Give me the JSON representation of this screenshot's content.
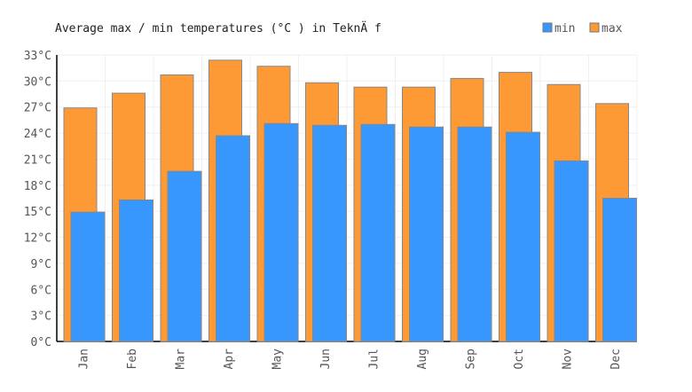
{
  "chart_data": {
    "type": "bar",
    "title": "Average max / min temperatures (°C ) in TeknÄ f",
    "xlabel": "",
    "ylabel": "",
    "ylim": [
      0,
      33
    ],
    "yticks": [
      "0°C",
      "3°C",
      "6°C",
      "9°C",
      "12°C",
      "15°C",
      "18°C",
      "21°C",
      "24°C",
      "27°C",
      "30°C",
      "33°C"
    ],
    "grid": true,
    "legend_position": "top-right",
    "categories": [
      "Jan",
      "Feb",
      "Mar",
      "Apr",
      "May",
      "Jun",
      "Jul",
      "Aug",
      "Sep",
      "Oct",
      "Nov",
      "Dec"
    ],
    "series": [
      {
        "name": "max",
        "color": "#fd9a35",
        "values": [
          26.9,
          28.6,
          30.7,
          32.4,
          31.7,
          29.8,
          29.3,
          29.3,
          30.3,
          31.0,
          29.6,
          27.4
        ]
      },
      {
        "name": "min",
        "color": "#3797fd",
        "values": [
          14.9,
          16.3,
          19.6,
          23.7,
          25.1,
          24.9,
          25.0,
          24.7,
          24.7,
          24.1,
          20.8,
          16.5
        ]
      }
    ]
  }
}
